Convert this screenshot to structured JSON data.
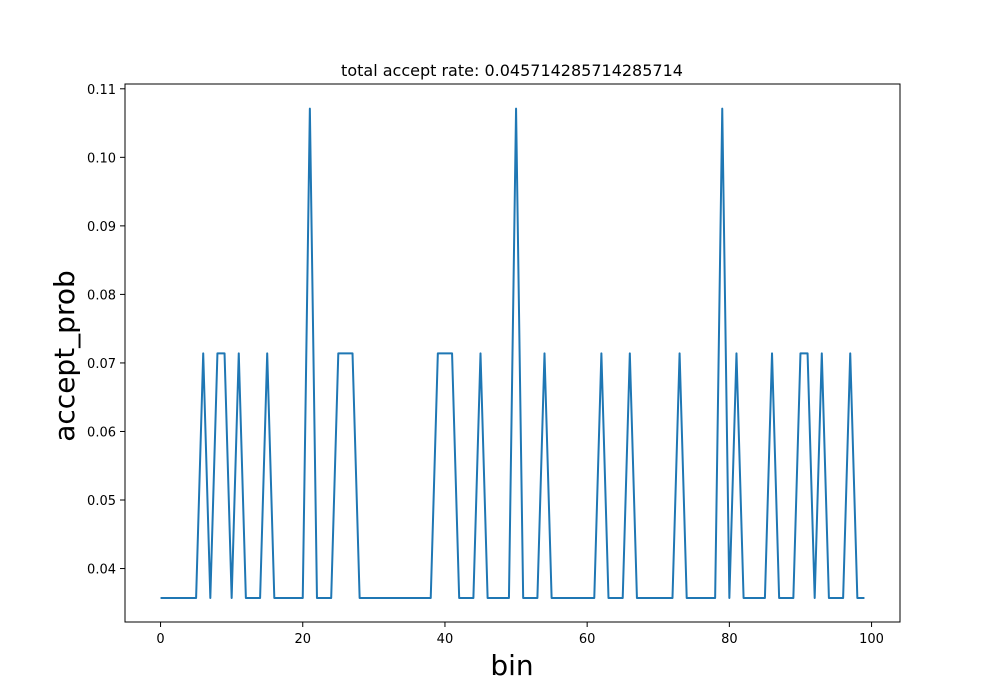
{
  "chart_data": {
    "type": "line",
    "title": "total accept rate: 0.045714285714285714",
    "xlabel": "bin",
    "ylabel": "accept_prob",
    "xlim": [
      -5,
      104
    ],
    "ylim": [
      0.0322,
      0.1107
    ],
    "xticks": [
      0,
      20,
      40,
      60,
      80,
      100
    ],
    "yticks": [
      0.04,
      0.05,
      0.06,
      0.07,
      0.08,
      0.09,
      0.1,
      0.11
    ],
    "xtick_labels": [
      "0",
      "20",
      "40",
      "60",
      "80",
      "100"
    ],
    "ytick_labels": [
      "0.04",
      "0.05",
      "0.06",
      "0.07",
      "0.08",
      "0.09",
      "0.10",
      "0.11"
    ],
    "grid": false,
    "series": [
      {
        "color": "#1f77b4",
        "x": [
          0,
          1,
          2,
          3,
          4,
          5,
          6,
          7,
          8,
          9,
          10,
          11,
          12,
          13,
          14,
          15,
          16,
          17,
          18,
          19,
          20,
          21,
          22,
          23,
          24,
          25,
          26,
          27,
          28,
          29,
          30,
          31,
          32,
          33,
          34,
          35,
          36,
          37,
          38,
          39,
          40,
          41,
          42,
          43,
          44,
          45,
          46,
          47,
          48,
          49,
          50,
          51,
          52,
          53,
          54,
          55,
          56,
          57,
          58,
          59,
          60,
          61,
          62,
          63,
          64,
          65,
          66,
          67,
          68,
          69,
          70,
          71,
          72,
          73,
          74,
          75,
          76,
          77,
          78,
          79,
          80,
          81,
          82,
          83,
          84,
          85,
          86,
          87,
          88,
          89,
          90,
          91,
          92,
          93,
          94,
          95,
          96,
          97,
          98,
          99
        ],
        "values": [
          0.0357,
          0.0357,
          0.0357,
          0.0357,
          0.0357,
          0.0357,
          0.0714,
          0.0357,
          0.0714,
          0.0714,
          0.0357,
          0.0714,
          0.0357,
          0.0357,
          0.0357,
          0.0714,
          0.0357,
          0.0357,
          0.0357,
          0.0357,
          0.0357,
          0.1071,
          0.0357,
          0.0357,
          0.0357,
          0.0714,
          0.0714,
          0.0714,
          0.0357,
          0.0357,
          0.0357,
          0.0357,
          0.0357,
          0.0357,
          0.0357,
          0.0357,
          0.0357,
          0.0357,
          0.0357,
          0.0714,
          0.0714,
          0.0714,
          0.0357,
          0.0357,
          0.0357,
          0.0714,
          0.0357,
          0.0357,
          0.0357,
          0.0357,
          0.1071,
          0.0357,
          0.0357,
          0.0357,
          0.0714,
          0.0357,
          0.0357,
          0.0357,
          0.0357,
          0.0357,
          0.0357,
          0.0357,
          0.0714,
          0.0357,
          0.0357,
          0.0357,
          0.0714,
          0.0357,
          0.0357,
          0.0357,
          0.0357,
          0.0357,
          0.0357,
          0.0714,
          0.0357,
          0.0357,
          0.0357,
          0.0357,
          0.0357,
          0.1071,
          0.0357,
          0.0714,
          0.0357,
          0.0357,
          0.0357,
          0.0357,
          0.0714,
          0.0357,
          0.0357,
          0.0357,
          0.0714,
          0.0714,
          0.0357,
          0.0714,
          0.0357,
          0.0357,
          0.0357,
          0.0714,
          0.0357,
          0.0357
        ]
      }
    ]
  }
}
